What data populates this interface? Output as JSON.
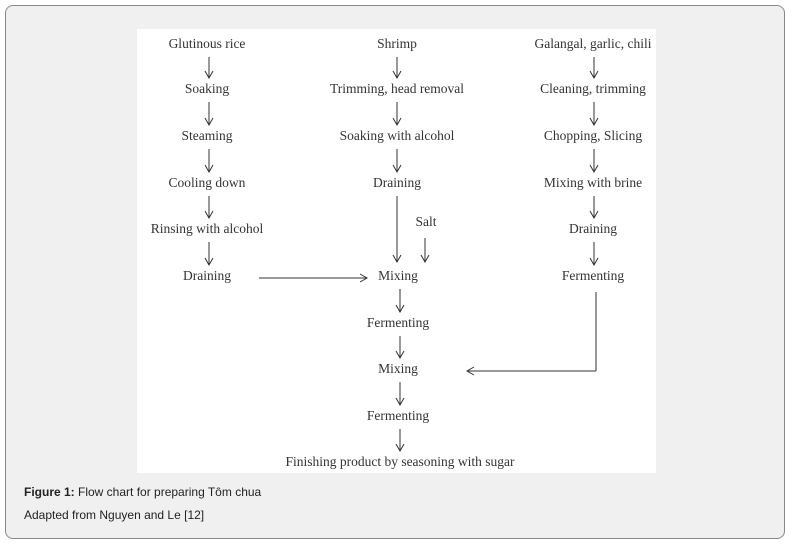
{
  "flowchart": {
    "column_rice": [
      "Glutinous rice",
      "Soaking",
      "Steaming",
      "Cooling down",
      "Rinsing with alcohol",
      "Draining"
    ],
    "column_shrimp": [
      "Shrimp",
      "Trimming, head removal",
      "Soaking with alcohol",
      "Draining"
    ],
    "column_spices": [
      "Galangal, garlic, chili",
      "Cleaning, trimming",
      "Chopping, Slicing",
      "Mixing with brine",
      "Draining",
      "Fermenting"
    ],
    "salt": "Salt",
    "center": [
      "Mixing",
      "Fermenting",
      "Mixing",
      "Fermenting",
      "Finishing product by seasoning with sugar"
    ]
  },
  "caption": {
    "label": "Figure 1:",
    "text": "Flow chart for preparing Tôm chua",
    "source": "Adapted from Nguyen and Le [12]"
  }
}
